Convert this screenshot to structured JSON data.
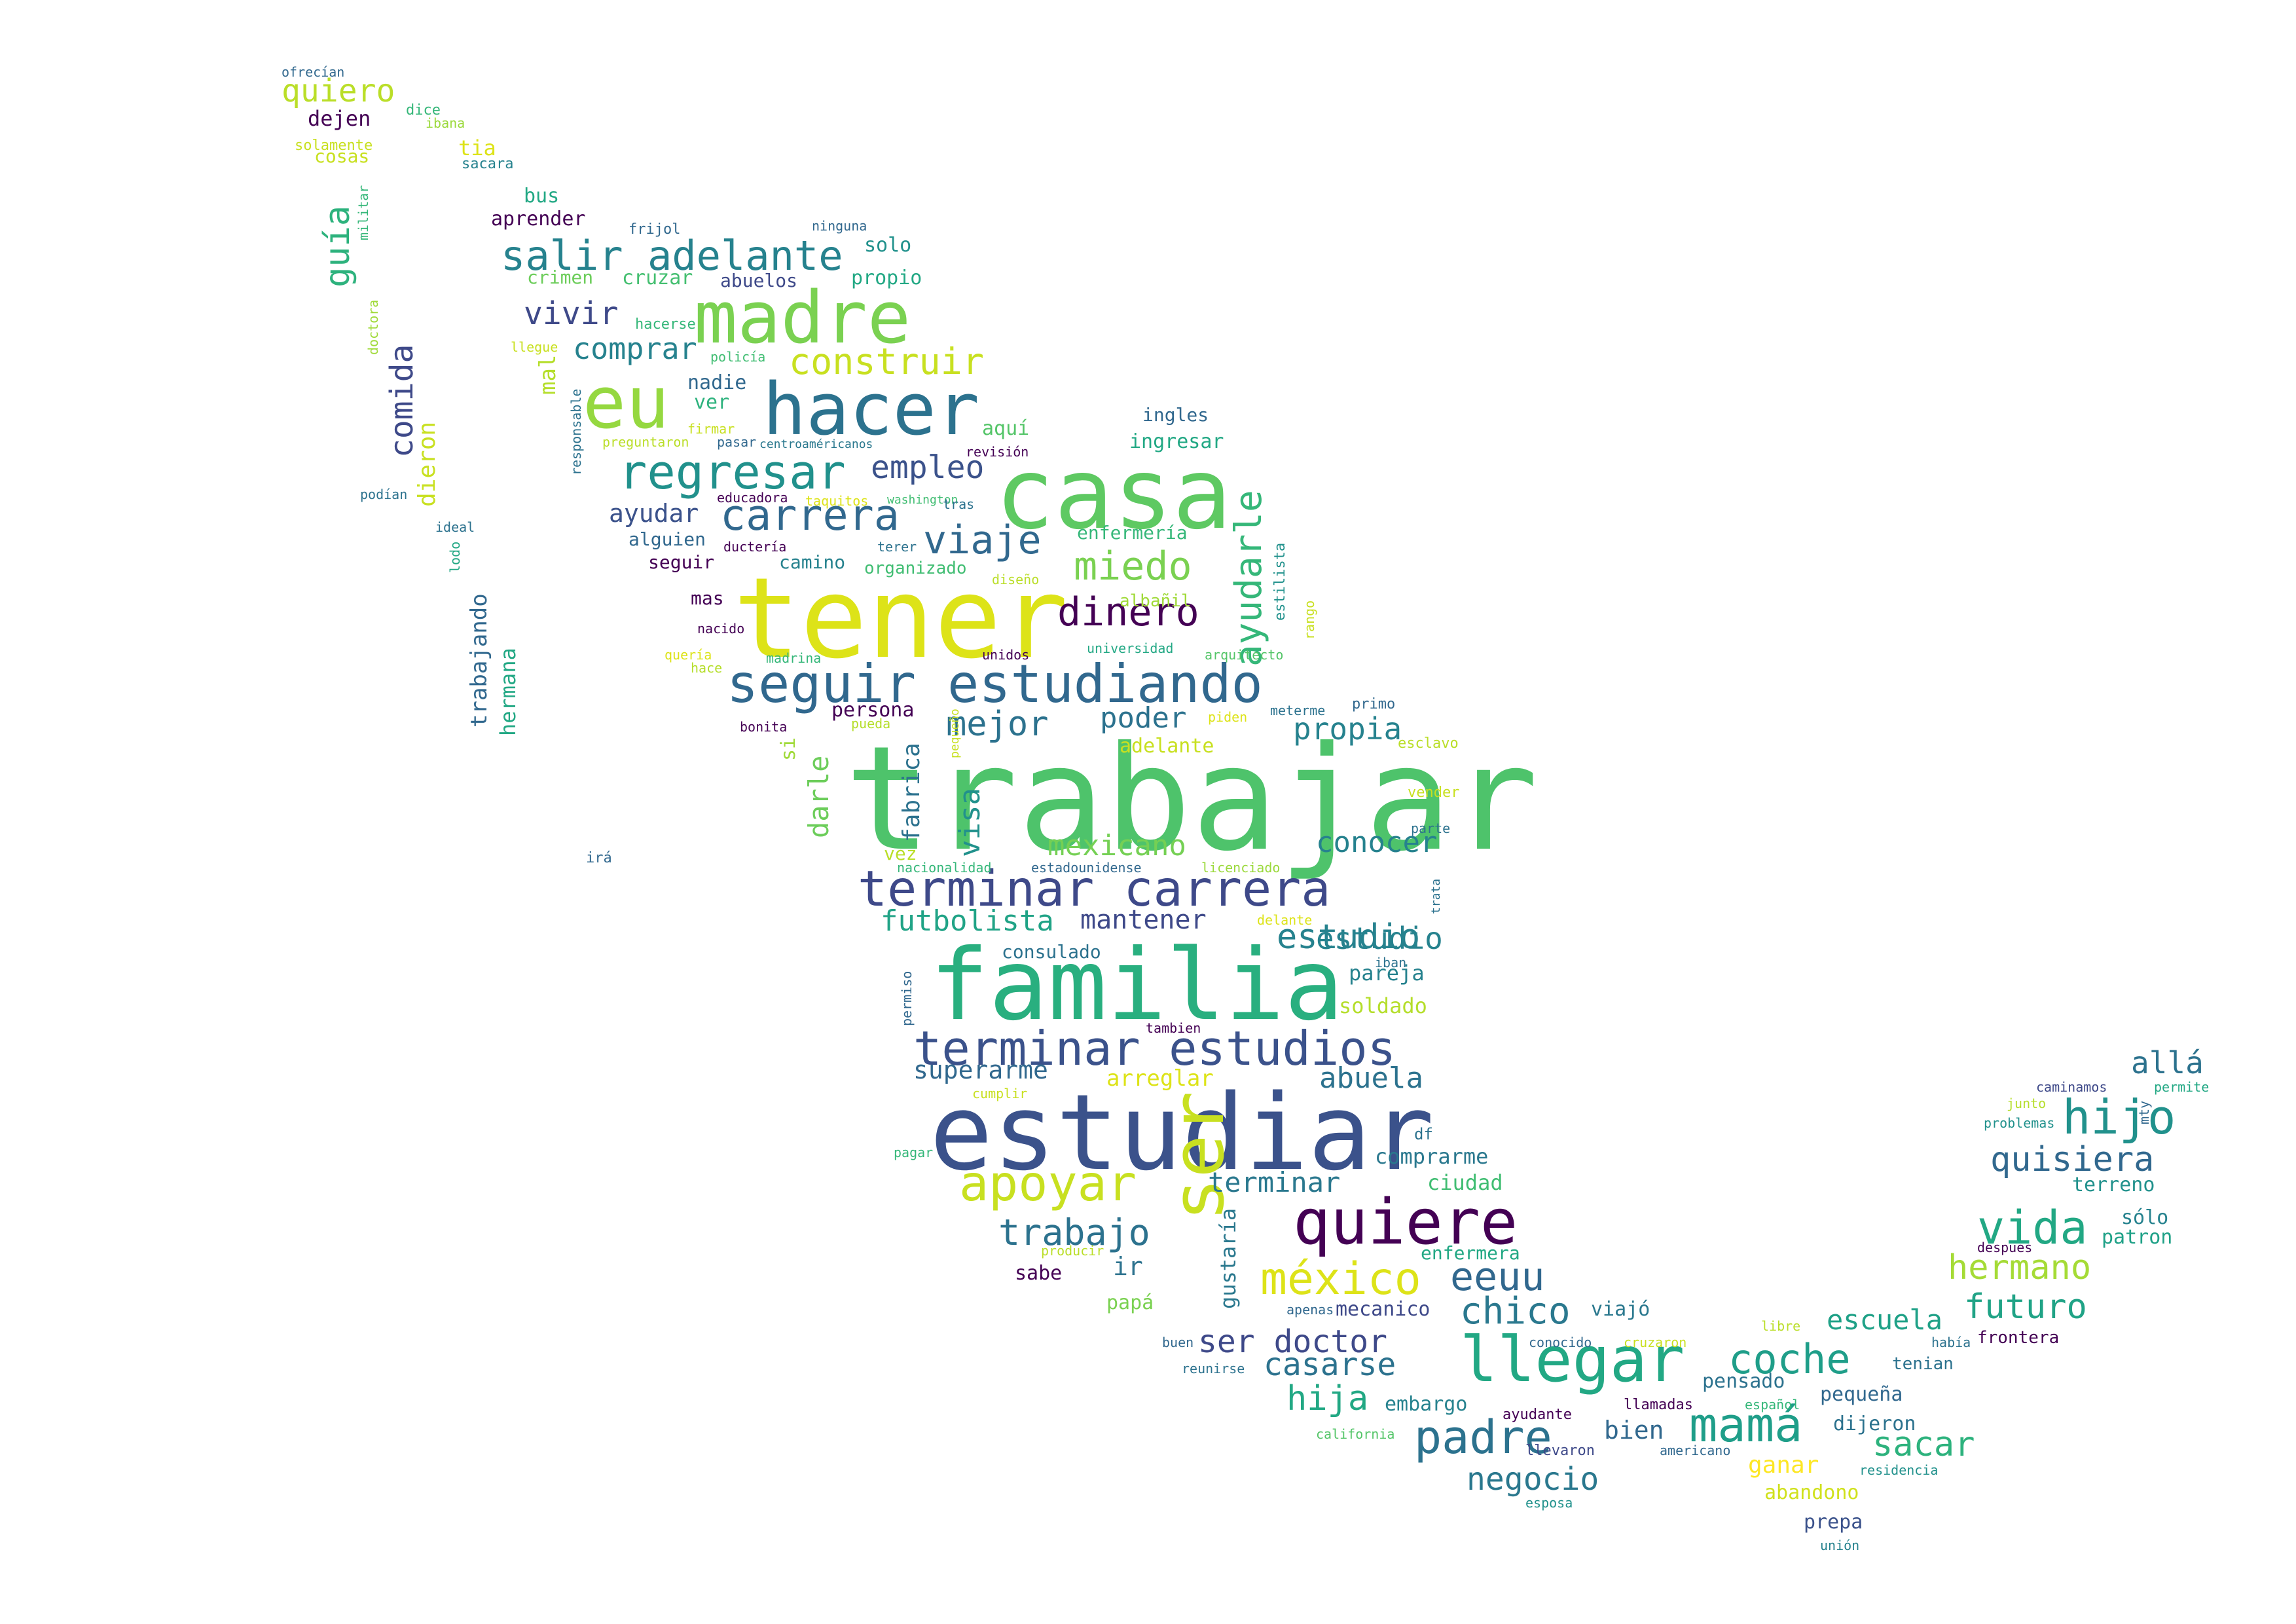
{
  "words": [
    {
      "text": "trabajar",
      "color": "#4ec36b"
    },
    {
      "text": "tener",
      "color": "#dde318"
    },
    {
      "text": "estudiar",
      "color": "#3b528b"
    },
    {
      "text": "familia",
      "color": "#29af7f"
    },
    {
      "text": "casa",
      "color": "#5ec962"
    },
    {
      "text": "hacer",
      "color": "#2c728e"
    },
    {
      "text": "madre",
      "color": "#7ad151"
    },
    {
      "text": "eu",
      "color": "#95d840"
    },
    {
      "text": "ser",
      "color": "#c8e020"
    },
    {
      "text": "quiere",
      "color": "#440154"
    },
    {
      "text": "seguir estudiando",
      "color": "#31688e"
    },
    {
      "text": "terminar carrera",
      "color": "#3e4989"
    },
    {
      "text": "terminar estudios",
      "color": "#3b528b"
    },
    {
      "text": "llegar",
      "color": "#22a884"
    },
    {
      "text": "apoyar",
      "color": "#c8e020"
    },
    {
      "text": "regresar",
      "color": "#21918c"
    },
    {
      "text": "carrera",
      "color": "#31688e"
    },
    {
      "text": "méxico",
      "color": "#dde318"
    },
    {
      "text": "salir adelante",
      "color": "#26828e"
    },
    {
      "text": "mamá",
      "color": "#1f9e89"
    },
    {
      "text": "dinero",
      "color": "#440154"
    },
    {
      "text": "viaje",
      "color": "#31688e"
    },
    {
      "text": "miedo",
      "color": "#7ad151"
    },
    {
      "text": "vida",
      "color": "#22a884"
    },
    {
      "text": "hijo",
      "color": "#21918c"
    },
    {
      "text": "padre",
      "color": "#2c728e"
    },
    {
      "text": "coche",
      "color": "#1f9e89"
    },
    {
      "text": "eeuu",
      "color": "#31688e"
    },
    {
      "text": "chico",
      "color": "#2a788e"
    },
    {
      "text": "construir",
      "color": "#c8e020"
    },
    {
      "text": "comprar",
      "color": "#26828e"
    },
    {
      "text": "vivir",
      "color": "#3e4989"
    },
    {
      "text": "empleo",
      "color": "#3b528b"
    },
    {
      "text": "ayudarle",
      "color": "#35b779"
    },
    {
      "text": "mejor",
      "color": "#2c728e"
    },
    {
      "text": "estudio",
      "color": "#26828e"
    },
    {
      "text": "trabajo",
      "color": "#2c728e"
    },
    {
      "text": "ser doctor",
      "color": "#3e4989"
    },
    {
      "text": "casarse",
      "color": "#2c728e"
    },
    {
      "text": "hija",
      "color": "#22a884"
    },
    {
      "text": "quisiera",
      "color": "#31688e"
    },
    {
      "text": "hermano",
      "color": "#a5db36"
    },
    {
      "text": "futuro",
      "color": "#20a386"
    },
    {
      "text": "sacar",
      "color": "#2db27d"
    },
    {
      "text": "escuela",
      "color": "#1fa187"
    },
    {
      "text": "negocio",
      "color": "#2a788e"
    },
    {
      "text": "allá",
      "color": "#2c728e"
    },
    {
      "text": "guía",
      "color": "#2db27d"
    },
    {
      "text": "comida",
      "color": "#3e4989"
    },
    {
      "text": "quiero",
      "color": "#bade28"
    },
    {
      "text": "mexicano",
      "color": "#75d054"
    },
    {
      "text": "futbolista",
      "color": "#20a386"
    },
    {
      "text": "mantener",
      "color": "#3e4989"
    },
    {
      "text": "poder",
      "color": "#2c728e"
    },
    {
      "text": "propia",
      "color": "#26828e"
    },
    {
      "text": "conocer",
      "color": "#26828e"
    },
    {
      "text": "terminar",
      "color": "#2a788e"
    },
    {
      "text": "abuela",
      "color": "#2c728e"
    },
    {
      "text": "superarme",
      "color": "#31688e"
    },
    {
      "text": "arreglar",
      "color": "#dde318"
    },
    {
      "text": "ayudar",
      "color": "#3b528b"
    },
    {
      "text": "visa",
      "color": "#21918c"
    },
    {
      "text": "darle",
      "color": "#6ccd5a"
    },
    {
      "text": "fabrica",
      "color": "#2c728e"
    },
    {
      "text": "pareja",
      "color": "#26828e"
    },
    {
      "text": "soldado",
      "color": "#b5de2b"
    },
    {
      "text": "comprarme",
      "color": "#2a788e"
    },
    {
      "text": "ciudad",
      "color": "#40bd72"
    },
    {
      "text": "gustaría",
      "color": "#2a788e"
    },
    {
      "text": "ir",
      "color": "#2c728e"
    },
    {
      "text": "sabe",
      "color": "#440154"
    },
    {
      "text": "papá",
      "color": "#7ad151"
    },
    {
      "text": "mecanico",
      "color": "#3e4989"
    },
    {
      "text": "enfermera",
      "color": "#22a884"
    },
    {
      "text": "viajó",
      "color": "#2a788e"
    },
    {
      "text": "embargo",
      "color": "#26828e"
    },
    {
      "text": "bien",
      "color": "#31688e"
    },
    {
      "text": "pensado",
      "color": "#2c728e"
    },
    {
      "text": "pequeña",
      "color": "#31688e"
    },
    {
      "text": "dijeron",
      "color": "#2c728e"
    },
    {
      "text": "ganar",
      "color": "#fde725"
    },
    {
      "text": "abandono",
      "color": "#d0e11c"
    },
    {
      "text": "prepa",
      "color": "#3b528b"
    },
    {
      "text": "terreno",
      "color": "#21918c"
    },
    {
      "text": "sólo",
      "color": "#26828e"
    },
    {
      "text": "patron",
      "color": "#1fa187"
    },
    {
      "text": "frontera",
      "color": "#440154"
    },
    {
      "text": "tenian",
      "color": "#2c728e"
    },
    {
      "text": "consulado",
      "color": "#2c728e"
    },
    {
      "text": "estudio",
      "color": "#26828e"
    },
    {
      "text": "crimen",
      "color": "#6ccd5a"
    },
    {
      "text": "cruzar",
      "color": "#44bf70"
    },
    {
      "text": "abuelos",
      "color": "#3e4989"
    },
    {
      "text": "propio",
      "color": "#22a884"
    },
    {
      "text": "solo",
      "color": "#21918c"
    },
    {
      "text": "aprender",
      "color": "#440154"
    },
    {
      "text": "bus",
      "color": "#22a884"
    },
    {
      "text": "nadie",
      "color": "#31688e"
    },
    {
      "text": "ver",
      "color": "#2db27d"
    },
    {
      "text": "aquí",
      "color": "#54c568"
    },
    {
      "text": "ingles",
      "color": "#31688e"
    },
    {
      "text": "ingresar",
      "color": "#22a884"
    },
    {
      "text": "enfermería",
      "color": "#35b779"
    },
    {
      "text": "albañil",
      "color": "#a0da39"
    },
    {
      "text": "camino",
      "color": "#26828e"
    },
    {
      "text": "organizado",
      "color": "#40bd72"
    },
    {
      "text": "alguien",
      "color": "#31688e"
    },
    {
      "text": "seguir",
      "color": "#440154"
    },
    {
      "text": "mas",
      "color": "#440154"
    },
    {
      "text": "persona",
      "color": "#440154"
    },
    {
      "text": "adelante",
      "color": "#c8e020"
    },
    {
      "text": "si",
      "color": "#a0da39"
    },
    {
      "text": "vez",
      "color": "#bade28"
    },
    {
      "text": "mal",
      "color": "#b5de2b"
    },
    {
      "text": "dieron",
      "color": "#c8e020"
    },
    {
      "text": "trabajando",
      "color": "#31688e"
    },
    {
      "text": "hermana",
      "color": "#22a884"
    },
    {
      "text": "dejen",
      "color": "#440154"
    },
    {
      "text": "tia",
      "color": "#dde318"
    },
    {
      "text": "cosas",
      "color": "#c8e020"
    },
    {
      "text": "ofrecían",
      "color": "#31688e"
    },
    {
      "text": "dice",
      "color": "#35b779"
    },
    {
      "text": "ibana",
      "color": "#9bd93c"
    },
    {
      "text": "solamente",
      "color": "#c8e020"
    },
    {
      "text": "sacara",
      "color": "#26828e"
    },
    {
      "text": "militar",
      "color": "#35b779"
    },
    {
      "text": "doctora",
      "color": "#a0da39"
    },
    {
      "text": "frijol",
      "color": "#31688e"
    },
    {
      "text": "ninguna",
      "color": "#31688e"
    },
    {
      "text": "hacerse",
      "color": "#35b779"
    },
    {
      "text": "llegue",
      "color": "#c8e020"
    },
    {
      "text": "policía",
      "color": "#40bd72"
    },
    {
      "text": "responsable",
      "color": "#2c728e"
    },
    {
      "text": "firmar",
      "color": "#c8e020"
    },
    {
      "text": "preguntaron",
      "color": "#bade28"
    },
    {
      "text": "pasar",
      "color": "#31688e"
    },
    {
      "text": "centroaméricanos",
      "color": "#2a788e"
    },
    {
      "text": "revisión",
      "color": "#440154"
    },
    {
      "text": "podían",
      "color": "#2c728e"
    },
    {
      "text": "ideal",
      "color": "#2c728e"
    },
    {
      "text": "lodo",
      "color": "#22a884"
    },
    {
      "text": "educadora",
      "color": "#440154"
    },
    {
      "text": "taquitos",
      "color": "#dde318"
    },
    {
      "text": "washington",
      "color": "#40bd72"
    },
    {
      "text": "tras",
      "color": "#2c728e"
    },
    {
      "text": "ductería",
      "color": "#440154"
    },
    {
      "text": "terer",
      "color": "#2c728e"
    },
    {
      "text": "diseño",
      "color": "#bade28"
    },
    {
      "text": "estilista",
      "color": "#21918c"
    },
    {
      "text": "rango",
      "color": "#c8e020"
    },
    {
      "text": "nacido",
      "color": "#440154"
    },
    {
      "text": "quería",
      "color": "#dde318"
    },
    {
      "text": "hace",
      "color": "#b5de2b"
    },
    {
      "text": "madrina",
      "color": "#35b779"
    },
    {
      "text": "pequeño",
      "color": "#c8e020"
    },
    {
      "text": "unidos",
      "color": "#440154"
    },
    {
      "text": "universidad",
      "color": "#22a884"
    },
    {
      "text": "arquitecto",
      "color": "#54c568"
    },
    {
      "text": "primo",
      "color": "#31688e"
    },
    {
      "text": "meterme",
      "color": "#2c728e"
    },
    {
      "text": "piden",
      "color": "#dde318"
    },
    {
      "text": "bonita",
      "color": "#440154"
    },
    {
      "text": "pueda",
      "color": "#b5de2b"
    },
    {
      "text": "esclavo",
      "color": "#bade28"
    },
    {
      "text": "vender",
      "color": "#c8e020"
    },
    {
      "text": "parte",
      "color": "#2c728e"
    },
    {
      "text": "irá",
      "color": "#31688e"
    },
    {
      "text": "nacionalidad",
      "color": "#35b779"
    },
    {
      "text": "estadounidense",
      "color": "#31688e"
    },
    {
      "text": "licenciado",
      "color": "#9bd93c"
    },
    {
      "text": "trata",
      "color": "#2c728e"
    },
    {
      "text": "delante",
      "color": "#dde318"
    },
    {
      "text": "iban",
      "color": "#2c728e"
    },
    {
      "text": "permiso",
      "color": "#31688e"
    },
    {
      "text": "tambien",
      "color": "#440154"
    },
    {
      "text": "cumplir",
      "color": "#c8e020"
    },
    {
      "text": "df",
      "color": "#2c728e"
    },
    {
      "text": "pagar",
      "color": "#35b779"
    },
    {
      "text": "producir",
      "color": "#bade28"
    },
    {
      "text": "apenas",
      "color": "#31688e"
    },
    {
      "text": "buen",
      "color": "#31688e"
    },
    {
      "text": "reunirse",
      "color": "#2c728e"
    },
    {
      "text": "conocido",
      "color": "#31688e"
    },
    {
      "text": "cruzaron",
      "color": "#c8e020"
    },
    {
      "text": "libre",
      "color": "#bade28"
    },
    {
      "text": "había",
      "color": "#2c728e"
    },
    {
      "text": "ayudante",
      "color": "#440154"
    },
    {
      "text": "llamadas",
      "color": "#440154"
    },
    {
      "text": "español",
      "color": "#35b779"
    },
    {
      "text": "california",
      "color": "#54c568"
    },
    {
      "text": "llevaron",
      "color": "#3e4989"
    },
    {
      "text": "americano",
      "color": "#31688e"
    },
    {
      "text": "residencia",
      "color": "#21918c"
    },
    {
      "text": "esposa",
      "color": "#21918c"
    },
    {
      "text": "unión",
      "color": "#26828e"
    },
    {
      "text": "caminamos",
      "color": "#3e4989"
    },
    {
      "text": "permite",
      "color": "#22a884"
    },
    {
      "text": "junto",
      "color": "#b5de2b"
    },
    {
      "text": "problemas",
      "color": "#21918c"
    },
    {
      "text": "mty",
      "color": "#31688e"
    },
    {
      "text": "despues",
      "color": "#440154"
    }
  ]
}
